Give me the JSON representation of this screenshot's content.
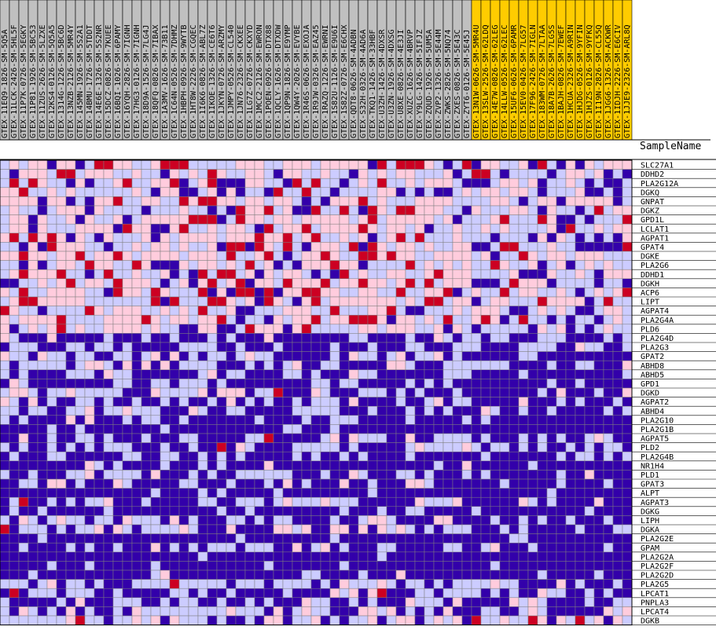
{
  "chart_data": {
    "type": "heatmap",
    "header_label": "SampleName",
    "colors": {
      "low": "#3300aa",
      "mid_low": "#ccccff",
      "mid_high": "#ffccdd",
      "high": "#cc0022",
      "control_group": "#c0c0c0",
      "case_group": "#ffcc00"
    },
    "columns": [
      {
        "name": "GTEX-11EQ9-1826-SM-5Q5A",
        "group": "control"
      },
      {
        "name": "GTEX-11LCK-2426-SM-5HL5F",
        "group": "control"
      },
      {
        "name": "GTEX-11P7K-0726-SM-5EGKY",
        "group": "control"
      },
      {
        "name": "GTEX-11P81-1926-SM-5BC53",
        "group": "control"
      },
      {
        "name": "GTEX-11ZUS-2626-SM-5LZXE",
        "group": "control"
      },
      {
        "name": "GTEX-12KS4-0126-SM-5Q5A5",
        "group": "control"
      },
      {
        "name": "GTEX-1314G-1226-SM-5BC6D",
        "group": "control"
      },
      {
        "name": "GTEX-13NZB-2126-SM-5MR4Y",
        "group": "control"
      },
      {
        "name": "GTEX-145MN-1926-SM-5S2A1",
        "group": "control"
      },
      {
        "name": "GTEX-14BMU-1726-SM-5TDDT",
        "group": "control"
      },
      {
        "name": "GTEX-14E6E-1326-SM-5S2NR",
        "group": "control"
      },
      {
        "name": "GTEX-15DCZ-0826-SM-7KUEE",
        "group": "control"
      },
      {
        "name": "GTEX-16BQI-1026-SM-6PAMY",
        "group": "control"
      },
      {
        "name": "GTEX-16YQH-2826-SM-7IGNH",
        "group": "control"
      },
      {
        "name": "GTEX-17HG3-0126-SM-7IGNH",
        "group": "control"
      },
      {
        "name": "GTEX-18D9A-1526-SM-7LG4J",
        "group": "control"
      },
      {
        "name": "GTEX-18QFQ-0826-SM-7IBAX",
        "group": "control"
      },
      {
        "name": "GTEX-1A3MV-1626-SM-73B11",
        "group": "control"
      },
      {
        "name": "GTEX-1C64N-0526-SM-7DHMZ",
        "group": "control"
      },
      {
        "name": "GTEX-1HBPH-0926-SM-9WYTB",
        "group": "control"
      },
      {
        "name": "GTEX-1HT8W-2226-SM-CGQEC",
        "group": "control"
      },
      {
        "name": "GTEX-1I6K6-0826-SM-ABL7Z",
        "group": "control"
      },
      {
        "name": "GTEX-1IKOE-1326-SM-CE6T6",
        "group": "control"
      },
      {
        "name": "GTEX-1JKYN-0726-SM-ARZMY",
        "group": "control"
      },
      {
        "name": "GTEX-1JMPY-0526-SM-CL540",
        "group": "control"
      },
      {
        "name": "GTEX-1JN76-2326-SM-CKXEE",
        "group": "control"
      },
      {
        "name": "GTEX-1LG7Z-0726-SM-CKXYD",
        "group": "control"
      },
      {
        "name": "GTEX-1MCC2-2126-SM-EWRON",
        "group": "control"
      },
      {
        "name": "GTEX-1POEN-0926-SM-DTX88",
        "group": "control"
      },
      {
        "name": "GTEX-1QCLY-1626-SM-DTXDW",
        "group": "control"
      },
      {
        "name": "GTEX-1QP9N-1826-SM-E9YMP",
        "group": "control"
      },
      {
        "name": "GTEX-1QW4Y-2026-SM-EVYBE",
        "group": "control"
      },
      {
        "name": "GTEX-1R46S-0626-SM-EXOJA",
        "group": "control"
      },
      {
        "name": "GTEX-1R9JW-0326-SM-EAZ45",
        "group": "control"
      },
      {
        "name": "GTEX-1RAZQ-1226-SM-EWRNI",
        "group": "control"
      },
      {
        "name": "GTEX-1S82U-1126-SM-E9U6I",
        "group": "control"
      },
      {
        "name": "GTEX-1S82Z-0726-SM-E6CHX",
        "group": "control"
      },
      {
        "name": "GTEX-QDT8-0626-SM-4ADBN",
        "group": "control"
      },
      {
        "name": "GTEX-S32H-0326-SM-4AD6A",
        "group": "control"
      },
      {
        "name": "GTEX-TKQ1-1426-SM-33HBF",
        "group": "control"
      },
      {
        "name": "GTEX-U3ZH-1426-SM-4DXSR",
        "group": "control"
      },
      {
        "name": "GTEX-U3ZN-1926-SM-4DXSG",
        "group": "control"
      },
      {
        "name": "GTEX-U8XE-0826-SM-4E3JI",
        "group": "control"
      },
      {
        "name": "GTEX-XUZC-1626-SM-4BRVP",
        "group": "control"
      },
      {
        "name": "GTEX-Y9LG-1426-SM-5IFJZ",
        "group": "control"
      },
      {
        "name": "GTEX-ZQUD-1926-SM-5UM5A",
        "group": "control"
      },
      {
        "name": "GTEX-ZVP2-1326-SM-5E44M",
        "group": "control"
      },
      {
        "name": "GTEX-ZWKS-2826-SM-5NQ74",
        "group": "control"
      },
      {
        "name": "GTEX-ZXES-0826-SM-5E43C",
        "group": "control"
      },
      {
        "name": "GTEX-ZYT6-0126-SM-5E45J",
        "group": "control"
      },
      {
        "name": "GTEX-13N1W-0626-SM-5MR4U",
        "group": "case"
      },
      {
        "name": "GTEX-13SLW-2526-SM-62LDQ",
        "group": "case"
      },
      {
        "name": "GTEX-14E7W-0826-SM-62LEG",
        "group": "case"
      },
      {
        "name": "GTEX-14LLW-0526-SM-62LEC",
        "group": "case"
      },
      {
        "name": "GTEX-15UF6-0626-SM-6PAMR",
        "group": "case"
      },
      {
        "name": "GTEX-15EV0-0426-SM-7LG57",
        "group": "case"
      },
      {
        "name": "GTEX-17F96-2426-SM-7IGLN",
        "group": "case"
      },
      {
        "name": "GTEX-183WM-0726-SM-7LTAA",
        "group": "case"
      },
      {
        "name": "GTEX-18A7B-2626-SM-7LG5S",
        "group": "case"
      },
      {
        "name": "GTEX-1BAJH-0826-SM-7EWEF",
        "group": "case"
      },
      {
        "name": "GTEX-1HCUA-2326-SM-A9RIN",
        "group": "case"
      },
      {
        "name": "GTEX-1HJDG-0526-SM-9YFIN",
        "group": "case"
      },
      {
        "name": "GTEX-1HJZS-0126-SM-9YFKQ",
        "group": "case"
      },
      {
        "name": "GTEX-1I19N-2826-SM-CL55Q",
        "group": "case"
      },
      {
        "name": "GTEX-1JGG6-1326-SM-ACKWR",
        "group": "case"
      },
      {
        "name": "GTEX-1IDJH-2226-SM-E6CIV",
        "group": "case"
      },
      {
        "name": "GTEX-1JJE9-2326-SM-ARL8Q",
        "group": "case"
      }
    ],
    "rows": [
      "SLC27A1",
      "DDHD2",
      "PLA2G12A",
      "DGKQ",
      "GNPAT",
      "DGKZ",
      "GPD1L",
      "LCLAT1",
      "AGPAT1",
      "GPAT4",
      "DGKE",
      "PLA2G6",
      "DDHD1",
      "DGKH",
      "ACP6",
      "LIPT",
      "AGPAT4",
      "PLA2G4A",
      "PLD6",
      "PLA2G4D",
      "PLA2G3",
      "GPAT2",
      "ABHD8",
      "ABHD5",
      "GPD1",
      "DGKD",
      "AGPAT2",
      "ABHD4",
      "PLA2G10",
      "PLA2G1B",
      "AGPAT5",
      "PLD2",
      "PLA2G4B",
      "NR1H4",
      "PLD1",
      "GPAT3",
      "ALPT",
      "AGPAT3",
      "DGKG",
      "LIPH",
      "DGKA",
      "PLA2G2E",
      "GPAM",
      "PLA2G2A",
      "PLA2G2F",
      "PLA2G2D",
      "PLA2G5",
      "LPCAT1",
      "PNPLA3",
      "LPCAT4",
      "DGKB"
    ],
    "row_means": [
      0.05,
      0.0,
      -0.05,
      -0.1,
      0.0,
      -0.05,
      0.05,
      0.1,
      0.0,
      0.0,
      0.05,
      -0.05,
      0.0,
      0.0,
      0.05,
      0.05,
      -0.05,
      0.0,
      -0.05,
      -0.6,
      -0.5,
      -0.4,
      -0.35,
      -0.6,
      -0.55,
      -0.4,
      -0.45,
      -0.5,
      -0.75,
      -0.9,
      -0.5,
      -0.4,
      -0.75,
      -0.75,
      -0.5,
      -0.55,
      -0.9,
      -0.4,
      -0.7,
      -0.35,
      -0.45,
      -0.95,
      -0.55,
      -0.9,
      -0.95,
      -0.8,
      -0.4,
      -0.5,
      -0.4,
      -0.35,
      -0.1
    ],
    "value_levels": 4,
    "value_range": [
      -1,
      1
    ],
    "random_seed": 1337
  }
}
